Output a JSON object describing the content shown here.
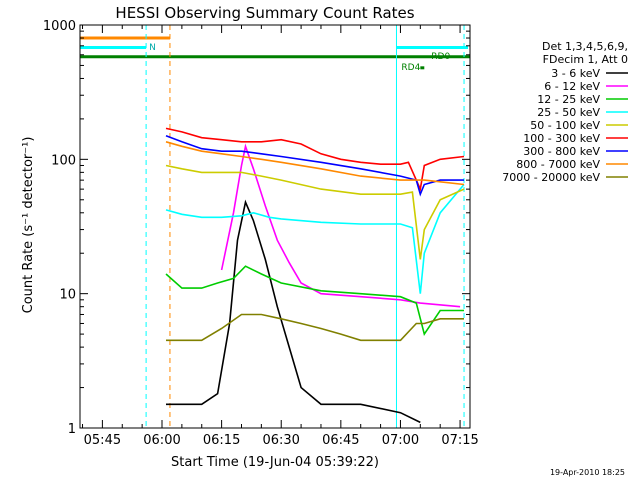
{
  "title": "HESSI Observing Summary Count Rates",
  "footer_timestamp": "19-Apr-2010 18:25",
  "chart_data": {
    "type": "line",
    "title": "HESSI Observing Summary Count Rates",
    "xlabel": "Start Time (19-Jun-04 05:39:22)",
    "ylabel": "Count Rate (s⁻¹ detector⁻¹)",
    "yscale": "log",
    "ylim": [
      1,
      1000
    ],
    "xlim": [
      "05:39:22",
      "07:17:30"
    ],
    "x_ticks": [
      "05:45",
      "06:00",
      "06:15",
      "06:30",
      "06:45",
      "07:00",
      "07:15"
    ],
    "y_ticks": [
      "1",
      "10",
      "100",
      "1000"
    ],
    "grid": false,
    "legend_position": "right",
    "legend_header": [
      "Det 1,3,4,5,6,9,",
      "FDecim 1, Att 0"
    ],
    "series": [
      {
        "name": "3 - 6 keV",
        "color": "#000000",
        "points": [
          [
            "06:01",
            1.5
          ],
          [
            "06:10",
            1.5
          ],
          [
            "06:14",
            1.8
          ],
          [
            "06:17",
            6
          ],
          [
            "06:19",
            25
          ],
          [
            "06:21",
            48
          ],
          [
            "06:23",
            35
          ],
          [
            "06:26",
            18
          ],
          [
            "06:29",
            8
          ],
          [
            "06:32",
            4
          ],
          [
            "06:35",
            2
          ],
          [
            "06:40",
            1.5
          ],
          [
            "06:50",
            1.5
          ],
          [
            "07:00",
            1.3
          ],
          [
            "07:05",
            1.1
          ]
        ]
      },
      {
        "name": "6 - 12 keV",
        "color": "#ff00ff",
        "points": [
          [
            "06:15",
            15
          ],
          [
            "06:18",
            40
          ],
          [
            "06:20",
            90
          ],
          [
            "06:21",
            125
          ],
          [
            "06:23",
            85
          ],
          [
            "06:26",
            45
          ],
          [
            "06:29",
            25
          ],
          [
            "06:32",
            17
          ],
          [
            "06:35",
            12
          ],
          [
            "06:40",
            10
          ],
          [
            "06:50",
            9.5
          ],
          [
            "07:00",
            9
          ],
          [
            "07:05",
            8.5
          ],
          [
            "07:15",
            8
          ]
        ]
      },
      {
        "name": "12 - 25 keV",
        "color": "#00cc00",
        "points": [
          [
            "06:01",
            14
          ],
          [
            "06:05",
            11
          ],
          [
            "06:10",
            11
          ],
          [
            "06:14",
            12
          ],
          [
            "06:18",
            13
          ],
          [
            "06:21",
            16
          ],
          [
            "06:25",
            14
          ],
          [
            "06:30",
            12
          ],
          [
            "06:40",
            10.5
          ],
          [
            "06:50",
            10
          ],
          [
            "07:00",
            9.5
          ],
          [
            "07:04",
            8.5
          ],
          [
            "07:06",
            5
          ],
          [
            "07:10",
            7.5
          ],
          [
            "07:16",
            7.5
          ]
        ]
      },
      {
        "name": "25 - 50 keV",
        "color": "#00ffff",
        "points": [
          [
            "06:01",
            42
          ],
          [
            "06:05",
            39
          ],
          [
            "06:10",
            37
          ],
          [
            "06:15",
            37
          ],
          [
            "06:20",
            38
          ],
          [
            "06:23",
            40
          ],
          [
            "06:27",
            37
          ],
          [
            "06:30",
            36
          ],
          [
            "06:40",
            34
          ],
          [
            "06:50",
            33
          ],
          [
            "07:00",
            33
          ],
          [
            "07:03",
            31
          ],
          [
            "07:05",
            10
          ],
          [
            "07:06",
            20
          ],
          [
            "07:10",
            40
          ],
          [
            "07:16",
            65
          ]
        ]
      },
      {
        "name": "50 - 100 keV",
        "color": "#cccc00",
        "points": [
          [
            "06:01",
            90
          ],
          [
            "06:05",
            85
          ],
          [
            "06:10",
            80
          ],
          [
            "06:15",
            80
          ],
          [
            "06:20",
            80
          ],
          [
            "06:25",
            75
          ],
          [
            "06:30",
            70
          ],
          [
            "06:40",
            60
          ],
          [
            "06:50",
            55
          ],
          [
            "07:00",
            55
          ],
          [
            "07:03",
            57
          ],
          [
            "07:05",
            18
          ],
          [
            "07:06",
            30
          ],
          [
            "07:10",
            50
          ],
          [
            "07:16",
            60
          ]
        ]
      },
      {
        "name": "100 - 300 keV",
        "color": "#ff0000",
        "points": [
          [
            "06:01",
            170
          ],
          [
            "06:05",
            160
          ],
          [
            "06:10",
            145
          ],
          [
            "06:15",
            140
          ],
          [
            "06:20",
            135
          ],
          [
            "06:25",
            135
          ],
          [
            "06:30",
            140
          ],
          [
            "06:35",
            130
          ],
          [
            "06:40",
            110
          ],
          [
            "06:45",
            100
          ],
          [
            "06:50",
            95
          ],
          [
            "06:55",
            92
          ],
          [
            "07:00",
            92
          ],
          [
            "07:02",
            95
          ],
          [
            "07:05",
            60
          ],
          [
            "07:06",
            90
          ],
          [
            "07:10",
            100
          ],
          [
            "07:16",
            105
          ]
        ]
      },
      {
        "name": "300 - 800 keV",
        "color": "#0000ff",
        "points": [
          [
            "06:01",
            150
          ],
          [
            "06:05",
            135
          ],
          [
            "06:10",
            120
          ],
          [
            "06:15",
            115
          ],
          [
            "06:20",
            115
          ],
          [
            "06:25",
            110
          ],
          [
            "06:30",
            105
          ],
          [
            "06:40",
            95
          ],
          [
            "06:50",
            85
          ],
          [
            "07:00",
            75
          ],
          [
            "07:04",
            70
          ],
          [
            "07:05",
            55
          ],
          [
            "07:06",
            65
          ],
          [
            "07:10",
            70
          ],
          [
            "07:16",
            70
          ]
        ]
      },
      {
        "name": "800 - 7000 keV",
        "color": "#ff8800",
        "points": [
          [
            "06:01",
            135
          ],
          [
            "06:05",
            125
          ],
          [
            "06:10",
            115
          ],
          [
            "06:15",
            110
          ],
          [
            "06:20",
            105
          ],
          [
            "06:25",
            100
          ],
          [
            "06:30",
            95
          ],
          [
            "06:40",
            85
          ],
          [
            "06:50",
            75
          ],
          [
            "07:00",
            70
          ],
          [
            "07:04",
            70
          ],
          [
            "07:06",
            70
          ],
          [
            "07:10",
            68
          ],
          [
            "07:16",
            65
          ]
        ]
      },
      {
        "name": "7000 - 20000 keV",
        "color": "#808000",
        "points": [
          [
            "06:01",
            4.5
          ],
          [
            "06:05",
            4.5
          ],
          [
            "06:10",
            4.5
          ],
          [
            "06:15",
            5.5
          ],
          [
            "06:20",
            7
          ],
          [
            "06:25",
            7
          ],
          [
            "06:30",
            6.5
          ],
          [
            "06:35",
            6
          ],
          [
            "06:40",
            5.5
          ],
          [
            "06:45",
            5
          ],
          [
            "06:50",
            4.5
          ],
          [
            "07:00",
            4.5
          ],
          [
            "07:04",
            6
          ],
          [
            "07:06",
            6
          ],
          [
            "07:10",
            6.5
          ],
          [
            "07:16",
            6.5
          ]
        ]
      }
    ],
    "annotations": [
      {
        "text": "N",
        "x": "05:56"
      },
      {
        "text": "RD0",
        "x": "07:07"
      },
      {
        "text": "RD4",
        "x": "07:02"
      }
    ],
    "flag_bars": [
      {
        "color": "#ff8800",
        "y": 800,
        "from": "05:39:22",
        "to": "06:02"
      },
      {
        "color": "#00ffff",
        "y": 680,
        "from": "05:39:22",
        "to": "05:56"
      },
      {
        "color": "#00ffff",
        "y": 680,
        "from": "06:59",
        "to": "07:17"
      },
      {
        "color": "#008000",
        "y": 580,
        "from": "05:39:22",
        "to": "07:17:30"
      },
      {
        "color": "#008000",
        "y": 480,
        "from": "07:05",
        "to": "07:06"
      }
    ],
    "vertical_markers": [
      {
        "color": "#00ffff",
        "style": "dashed",
        "x": "05:56"
      },
      {
        "color": "#ff8800",
        "style": "dashed",
        "x": "06:02"
      },
      {
        "color": "#00ffff",
        "style": "solid",
        "x": "06:59"
      },
      {
        "color": "#00ffff",
        "style": "dashed",
        "x": "07:16"
      }
    ]
  }
}
